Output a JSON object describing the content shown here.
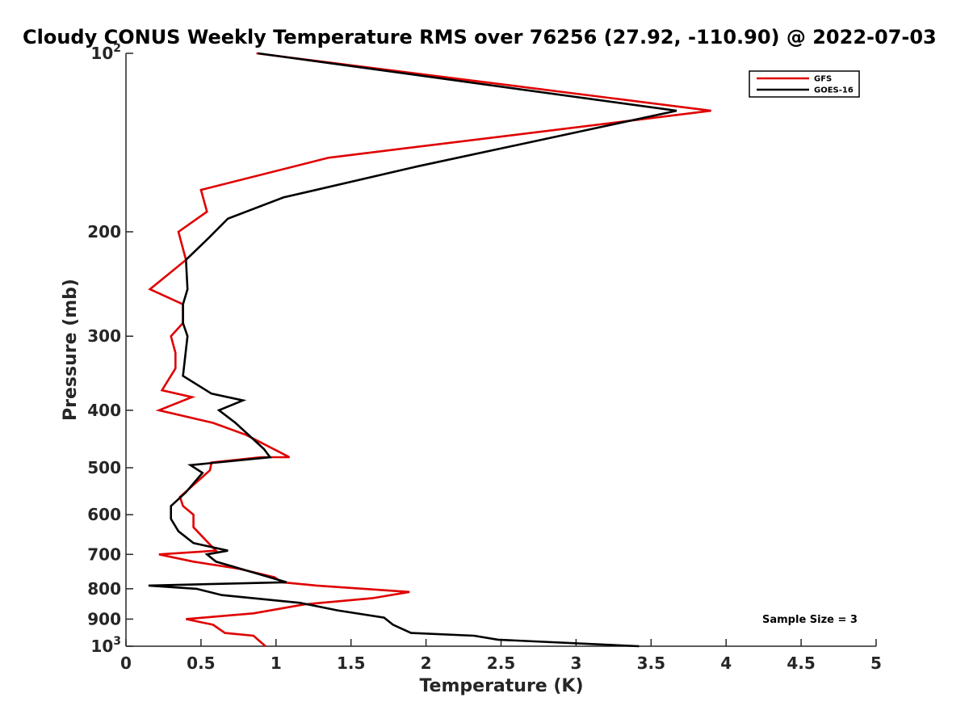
{
  "chart_data": {
    "type": "line",
    "title": "Cloudy CONUS Weekly Temperature RMS over 76256 (27.92, -110.90) @ 2022-07-03",
    "xlabel": "Temperature (K)",
    "ylabel": "Pressure (mb)",
    "xlim": [
      0,
      5
    ],
    "ylim": [
      100,
      1000
    ],
    "yscale": "log",
    "y_reversed": true,
    "xticks": [
      0,
      0.5,
      1,
      1.5,
      2,
      2.5,
      3,
      3.5,
      4,
      4.5,
      5
    ],
    "xtick_labels": [
      "0",
      "0.5",
      "1",
      "1.5",
      "2",
      "2.5",
      "3",
      "3.5",
      "4",
      "4.5",
      "5"
    ],
    "yticks": [
      {
        "value": 100,
        "base": "10",
        "exp": "2"
      },
      {
        "value": 200,
        "label": "200"
      },
      {
        "value": 300,
        "label": "300"
      },
      {
        "value": 400,
        "label": "400"
      },
      {
        "value": 500,
        "label": "500"
      },
      {
        "value": 600,
        "label": "600"
      },
      {
        "value": 700,
        "label": "700"
      },
      {
        "value": 800,
        "label": "800"
      },
      {
        "value": 900,
        "label": "900"
      },
      {
        "value": 1000,
        "base": "10",
        "exp": "3"
      }
    ],
    "legend_position": "top-right",
    "annotation": "Sample Size = 3",
    "series": [
      {
        "name": "GFS",
        "color": "#e00000",
        "points": [
          [
            0.87,
            100
          ],
          [
            3.9,
            125
          ],
          [
            1.35,
            150
          ],
          [
            0.5,
            170
          ],
          [
            0.54,
            185
          ],
          [
            0.35,
            200
          ],
          [
            0.4,
            223
          ],
          [
            0.16,
            250
          ],
          [
            0.38,
            265
          ],
          [
            0.38,
            285
          ],
          [
            0.3,
            300
          ],
          [
            0.33,
            320
          ],
          [
            0.33,
            340
          ],
          [
            0.24,
            370
          ],
          [
            0.44,
            380
          ],
          [
            0.22,
            400
          ],
          [
            0.58,
            420
          ],
          [
            0.8,
            440
          ],
          [
            1.02,
            470
          ],
          [
            1.09,
            480
          ],
          [
            0.9,
            480
          ],
          [
            0.57,
            490
          ],
          [
            0.56,
            505
          ],
          [
            0.36,
            560
          ],
          [
            0.38,
            580
          ],
          [
            0.45,
            600
          ],
          [
            0.45,
            630
          ],
          [
            0.55,
            670
          ],
          [
            0.6,
            690
          ],
          [
            0.22,
            700
          ],
          [
            0.45,
            720
          ],
          [
            0.75,
            740
          ],
          [
            0.99,
            765
          ],
          [
            1.04,
            780
          ],
          [
            1.27,
            790
          ],
          [
            1.89,
            810
          ],
          [
            1.64,
            830
          ],
          [
            1.19,
            850
          ],
          [
            0.85,
            880
          ],
          [
            0.4,
            900
          ],
          [
            0.58,
            920
          ],
          [
            0.66,
            950
          ],
          [
            0.85,
            960
          ],
          [
            0.89,
            980
          ],
          [
            0.93,
            1000
          ]
        ]
      },
      {
        "name": "GOES-16",
        "color": "#000000",
        "points": [
          [
            0.88,
            100
          ],
          [
            3.67,
            125
          ],
          [
            1.95,
            155
          ],
          [
            1.05,
            175
          ],
          [
            0.68,
            190
          ],
          [
            0.55,
            205
          ],
          [
            0.4,
            223
          ],
          [
            0.41,
            250
          ],
          [
            0.38,
            265
          ],
          [
            0.38,
            285
          ],
          [
            0.41,
            300
          ],
          [
            0.38,
            350
          ],
          [
            0.57,
            375
          ],
          [
            0.78,
            385
          ],
          [
            0.62,
            400
          ],
          [
            0.73,
            420
          ],
          [
            0.92,
            465
          ],
          [
            0.96,
            480
          ],
          [
            0.43,
            495
          ],
          [
            0.51,
            510
          ],
          [
            0.4,
            550
          ],
          [
            0.3,
            580
          ],
          [
            0.3,
            610
          ],
          [
            0.35,
            640
          ],
          [
            0.45,
            670
          ],
          [
            0.68,
            690
          ],
          [
            0.54,
            700
          ],
          [
            0.6,
            720
          ],
          [
            0.84,
            750
          ],
          [
            1.07,
            780
          ],
          [
            0.15,
            790
          ],
          [
            0.47,
            800
          ],
          [
            0.64,
            820
          ],
          [
            1.16,
            845
          ],
          [
            1.41,
            870
          ],
          [
            1.72,
            895
          ],
          [
            1.78,
            920
          ],
          [
            1.9,
            950
          ],
          [
            2.32,
            960
          ],
          [
            2.48,
            975
          ],
          [
            3.42,
            1000
          ]
        ]
      }
    ]
  }
}
